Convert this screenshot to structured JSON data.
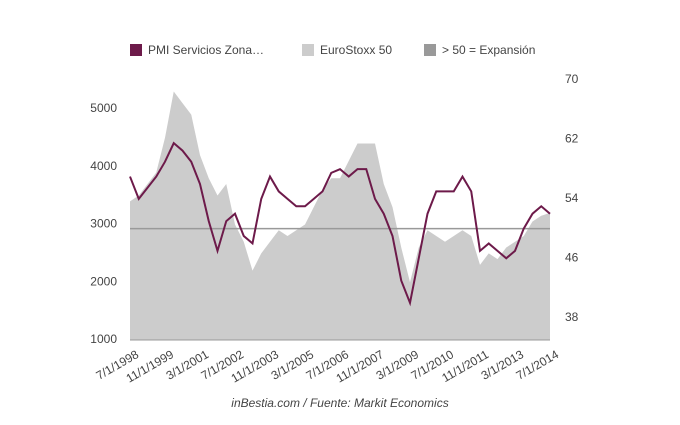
{
  "chart_data": {
    "type": "combo",
    "footer": "inBestia.com / Fuente: Markit Economics",
    "categories": [
      "7/1/1998",
      null,
      null,
      null,
      "11/1/1999",
      null,
      null,
      null,
      "3/1/2001",
      null,
      null,
      null,
      "7/1/2002",
      null,
      null,
      null,
      "11/1/2003",
      null,
      null,
      null,
      "3/1/2005",
      null,
      null,
      null,
      "7/1/2006",
      null,
      null,
      null,
      "11/1/2007",
      null,
      null,
      null,
      "3/1/2009",
      null,
      null,
      null,
      "7/1/2010",
      null,
      null,
      null,
      "11/1/2011",
      null,
      null,
      null,
      "3/1/2013",
      null,
      null,
      null,
      "7/1/2014"
    ],
    "ylim": [
      1000,
      5500
    ],
    "yticks": [
      1000,
      2000,
      3000,
      4000,
      5000
    ],
    "y2lim": [
      35,
      70
    ],
    "y2ticks": [
      38,
      46,
      54,
      62,
      70
    ],
    "series": [
      {
        "name": "PMI Servicios Zona…",
        "type": "line",
        "axis": "y2",
        "color": "#6d1a4a",
        "values": [
          57,
          54,
          55.5,
          57,
          59,
          61.5,
          60.5,
          59,
          56,
          51,
          47,
          51,
          52,
          49,
          48,
          54,
          57,
          55,
          54,
          53,
          53,
          54,
          55,
          57.5,
          58,
          57,
          58,
          58,
          54,
          52,
          49,
          43,
          40,
          46,
          52,
          55,
          55,
          55,
          57,
          55,
          47,
          48,
          47,
          46,
          47,
          50,
          52,
          53,
          52
        ]
      },
      {
        "name": "EuroStoxx 50",
        "type": "area",
        "color": "#cccccc",
        "values": [
          3400,
          3500,
          3700,
          3900,
          4500,
          5300,
          5100,
          4900,
          4200,
          3800,
          3500,
          3700,
          3000,
          2700,
          2200,
          2500,
          2700,
          2900,
          2800,
          2900,
          3000,
          3300,
          3600,
          3800,
          3800,
          4100,
          4400,
          4400,
          4400,
          3700,
          3300,
          2600,
          2000,
          2600,
          2900,
          2800,
          2700,
          2800,
          2900,
          2800,
          2300,
          2500,
          2400,
          2600,
          2700,
          2800,
          3050,
          3150,
          3200
        ]
      },
      {
        "name": "> 50 = Expansión",
        "type": "line",
        "axis": "y2",
        "color": "#999999",
        "values": [
          50,
          50,
          50,
          50,
          50,
          50,
          50,
          50,
          50,
          50,
          50,
          50,
          50,
          50,
          50,
          50,
          50,
          50,
          50,
          50,
          50,
          50,
          50,
          50,
          50,
          50,
          50,
          50,
          50,
          50,
          50,
          50,
          50,
          50,
          50,
          50,
          50,
          50,
          50,
          50,
          50,
          50,
          50,
          50,
          50,
          50,
          50,
          50,
          50
        ]
      }
    ]
  }
}
